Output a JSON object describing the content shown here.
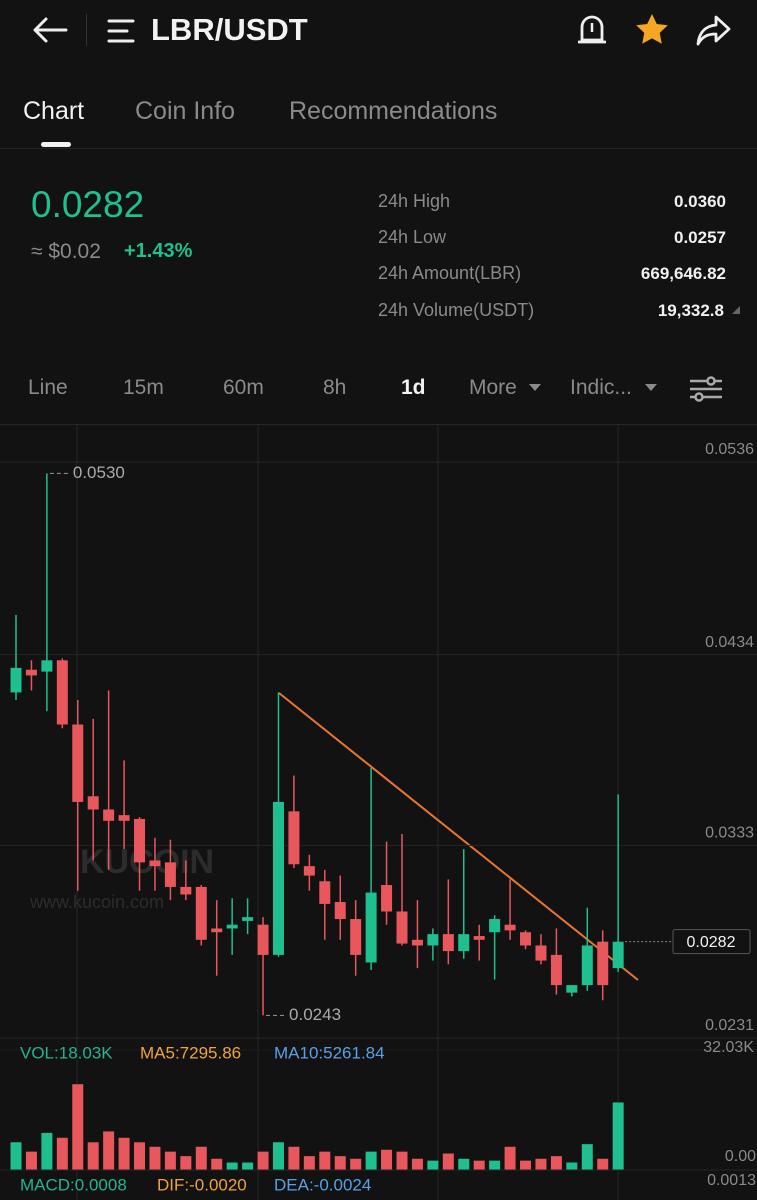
{
  "header": {
    "title": "LBR/USDT"
  },
  "tabs": [
    "Chart",
    "Coin Info",
    "Recommendations"
  ],
  "ticker": {
    "price": "0.0282",
    "approx": "≈ $0.02",
    "change": "+1.43%",
    "stats": [
      {
        "label": "24h High",
        "value": "0.0360"
      },
      {
        "label": "24h Low",
        "value": "0.0257"
      },
      {
        "label": "24h Amount(LBR)",
        "value": "669,646.82"
      },
      {
        "label": "24h Volume(USDT)",
        "value": "19,332.8"
      }
    ]
  },
  "intervals": [
    "Line",
    "15m",
    "60m",
    "8h",
    "1d",
    "More",
    "Indic..."
  ],
  "chart_data": {
    "type": "candlestick",
    "up_color": "#1fbf8f",
    "down_color": "#e8575c",
    "open": [
      0.0414,
      0.0426,
      0.0425,
      0.0431,
      0.0397,
      0.0359,
      0.0352,
      0.0349,
      0.0347,
      0.0325,
      0.0324,
      0.0311,
      0.0311,
      0.0289,
      0.0289,
      0.0293,
      0.0291,
      0.0275,
      0.0351,
      0.0322,
      0.0314,
      0.0303,
      0.0294,
      0.0271,
      0.0312,
      0.0298,
      0.0283,
      0.028,
      0.0286,
      0.0277,
      0.0285,
      0.0287,
      0.0291,
      0.0287,
      0.028,
      0.0275,
      0.0255,
      0.0259,
      0.0282,
      0.0268
    ],
    "high": [
      0.0455,
      0.0431,
      0.053,
      0.0432,
      0.041,
      0.04,
      0.0415,
      0.0378,
      0.0348,
      0.0337,
      0.0336,
      0.0325,
      0.0312,
      0.0304,
      0.0305,
      0.0305,
      0.0295,
      0.0414,
      0.037,
      0.0328,
      0.032,
      0.0317,
      0.0304,
      0.0374,
      0.0335,
      0.0339,
      0.0304,
      0.0289,
      0.0315,
      0.0331,
      0.0291,
      0.0296,
      0.0315,
      0.0288,
      0.0286,
      0.0289,
      0.0259,
      0.03,
      0.0288,
      0.036
    ],
    "low": [
      0.041,
      0.0415,
      0.0404,
      0.0395,
      0.0309,
      0.0325,
      0.032,
      0.0331,
      0.0309,
      0.0309,
      0.0304,
      0.0304,
      0.028,
      0.0264,
      0.0275,
      0.0286,
      0.0243,
      0.0274,
      0.0321,
      0.0309,
      0.0283,
      0.0283,
      0.0264,
      0.0267,
      0.0291,
      0.028,
      0.0268,
      0.0272,
      0.027,
      0.0273,
      0.0272,
      0.0262,
      0.0283,
      0.0278,
      0.027,
      0.0254,
      0.0253,
      0.0256,
      0.0251,
      0.0266
    ],
    "close": [
      0.0427,
      0.0423,
      0.0431,
      0.0397,
      0.0356,
      0.0352,
      0.0346,
      0.0346,
      0.0324,
      0.0322,
      0.0311,
      0.0307,
      0.0283,
      0.0287,
      0.0291,
      0.0295,
      0.0275,
      0.0356,
      0.0323,
      0.0317,
      0.0302,
      0.0294,
      0.0275,
      0.0308,
      0.0298,
      0.0281,
      0.028,
      0.0286,
      0.0277,
      0.0286,
      0.0283,
      0.0294,
      0.0288,
      0.028,
      0.0272,
      0.0259,
      0.0259,
      0.028,
      0.0259,
      0.0282
    ],
    "ylim": [
      0.0231,
      0.0536
    ],
    "yticks": [
      0.0536,
      0.0434,
      0.0333,
      0.0231
    ],
    "grid": true,
    "annotations": [
      {
        "value": 0.053,
        "label": "0.0530"
      },
      {
        "value": 0.0243,
        "label": "0.0243"
      }
    ],
    "last_price": 0.0282,
    "watermark": [
      "KUCOIN",
      "www.kucoin.com"
    ],
    "volume": {
      "values": [
        7.4,
        4.9,
        9.9,
        8.6,
        22.9,
        7.4,
        10.3,
        8.6,
        7.4,
        6.2,
        4.9,
        3.7,
        6.2,
        3.0,
        2.0,
        2.0,
        4.9,
        7.4,
        6.2,
        3.7,
        4.9,
        3.7,
        3.0,
        4.9,
        5.4,
        4.9,
        3.0,
        2.5,
        4.4,
        3.0,
        2.5,
        2.5,
        6.2,
        2.5,
        3.0,
        3.7,
        2.0,
        6.9,
        3.0,
        18.03
      ],
      "ylim": [
        0,
        32.03
      ],
      "yticks": [
        {
          "value": 32.03,
          "label": "32.03K"
        }
      ],
      "legend": [
        {
          "text": "VOL:18.03K",
          "color": "#26b38f"
        },
        {
          "text": "MA5:7295.86",
          "color": "#f0a33a"
        },
        {
          "text": "MA10:5261.84",
          "color": "#5aa0e6"
        }
      ]
    },
    "macd": {
      "legend": [
        {
          "text": "MACD:0.0008",
          "color": "#26b38f"
        },
        {
          "text": "DIF:-0.0020",
          "color": "#f0a33a"
        },
        {
          "text": "DEA:-0.0024",
          "color": "#5aa0e6"
        }
      ],
      "ticks": [
        "0.00",
        "0.0013"
      ]
    }
  }
}
